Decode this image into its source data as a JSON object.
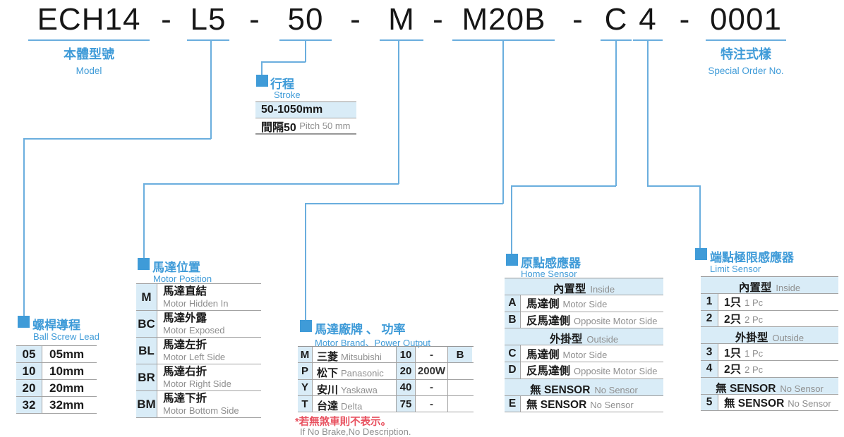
{
  "colors": {
    "accent": "#3f9bd8",
    "cell_bg": "#d9ecf7",
    "line_blue": "#6aaede",
    "note_red": "#e8515f"
  },
  "model": {
    "segments": [
      "ECH14",
      "L5",
      "50",
      "M",
      "M20B",
      "C",
      "4",
      "0001"
    ],
    "sep": "-"
  },
  "labels": {
    "model_zh": "本體型號",
    "model_en": "Model",
    "special_zh": "特注式樣",
    "special_en": "Special Order No."
  },
  "stroke": {
    "title_zh": "行程",
    "title_en": "Stroke",
    "range": "50-1050mm",
    "pitch_zh": "間隔50",
    "pitch_en": "Pitch 50 mm"
  },
  "ball_screw": {
    "title_zh": "螺桿導程",
    "title_en": "Ball Screw Lead",
    "rows": [
      [
        "05",
        "05mm"
      ],
      [
        "10",
        "10mm"
      ],
      [
        "20",
        "20mm"
      ],
      [
        "32",
        "32mm"
      ]
    ]
  },
  "motor_position": {
    "title_zh": "馬達位置",
    "title_en": "Motor Position",
    "rows": [
      {
        "code": "M",
        "zh": "馬達直結",
        "en": "Motor Hidden In"
      },
      {
        "code": "BC",
        "zh": "馬達外露",
        "en": "Motor Exposed"
      },
      {
        "code": "BL",
        "zh": "馬達左折",
        "en": "Motor Left Side"
      },
      {
        "code": "BR",
        "zh": "馬達右折",
        "en": "Motor Right Side"
      },
      {
        "code": "BM",
        "zh": "馬達下折",
        "en": "Motor Bottom Side"
      }
    ]
  },
  "motor_brand": {
    "title_zh": "馬達廠牌 、 功率",
    "title_en": "Motor Brand、Power Output",
    "rows": [
      {
        "code": "M",
        "zh": "三菱",
        "en": "Mitsubishi",
        "power_code": "10",
        "power": "-",
        "brake": "B"
      },
      {
        "code": "P",
        "zh": "松下",
        "en": "Panasonic",
        "power_code": "20",
        "power": "200W",
        "brake": ""
      },
      {
        "code": "Y",
        "zh": "安川",
        "en": "Yaskawa",
        "power_code": "40",
        "power": "-",
        "brake": ""
      },
      {
        "code": "T",
        "zh": "台達",
        "en": "Delta",
        "power_code": "75",
        "power": "-",
        "brake": ""
      }
    ],
    "note_zh": "*若無煞車則不表示。",
    "note_en": "If No Brake,No Description."
  },
  "home_sensor": {
    "title_zh": "原點感應器",
    "title_en": "Home Sensor",
    "rows": [
      {
        "section": true,
        "zh": "內置型",
        "en": "Inside"
      },
      {
        "code": "A",
        "zh": "馬達側",
        "en": "Motor Side"
      },
      {
        "code": "B",
        "zh": "反馬達側",
        "en": "Opposite Motor Side"
      },
      {
        "section": true,
        "zh": "外掛型",
        "en": "Outside"
      },
      {
        "code": "C",
        "zh": "馬達側",
        "en": "Motor Side"
      },
      {
        "code": "D",
        "zh": "反馬達側",
        "en": "Opposite Motor Side"
      },
      {
        "section": true,
        "zh": "無 SENSOR",
        "en": "No Sensor"
      },
      {
        "code": "E",
        "zh": "無 SENSOR",
        "en": "No Sensor"
      }
    ]
  },
  "limit_sensor": {
    "title_zh": "端點極限感應器",
    "title_en": "Limit Sensor",
    "rows": [
      {
        "section": true,
        "zh": "內置型",
        "en": "Inside"
      },
      {
        "code": "1",
        "zh": "1只",
        "en": "1 Pc"
      },
      {
        "code": "2",
        "zh": "2只",
        "en": "2 Pc"
      },
      {
        "section": true,
        "zh": "外掛型",
        "en": "Outside"
      },
      {
        "code": "3",
        "zh": "1只",
        "en": "1 Pc"
      },
      {
        "code": "4",
        "zh": "2只",
        "en": "2 Pc"
      },
      {
        "section": true,
        "zh": "無 SENSOR",
        "en": "No Sensor"
      },
      {
        "code": "5",
        "zh": "無 SENSOR",
        "en": "No Sensor"
      }
    ]
  }
}
